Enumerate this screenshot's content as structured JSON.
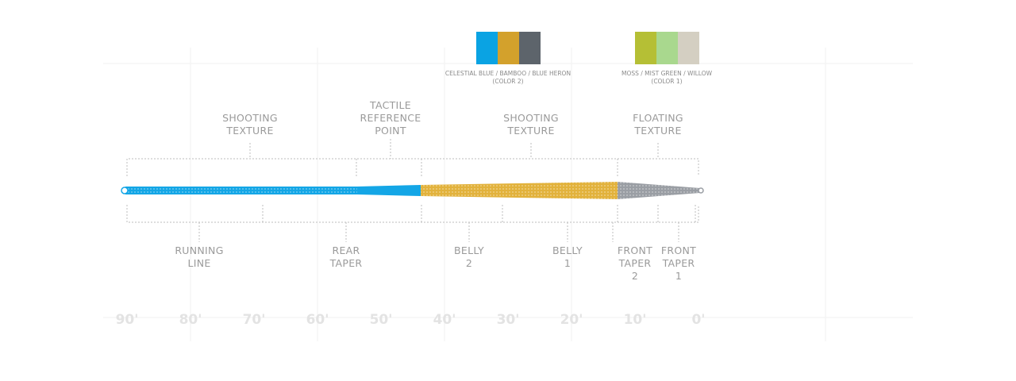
{
  "swatches": [
    {
      "label": "CELESTIAL BLUE / BAMBOO / BLUE HERON\n(COLOR 2)",
      "colors": [
        "#0aa3e3",
        "#d3a12c",
        "#5d646b"
      ]
    },
    {
      "label": "MOSS / MIST GREEN / WILLOW\n(COLOR 1)",
      "colors": [
        "#b5bf35",
        "#a9d88e",
        "#d4cfc2"
      ]
    }
  ],
  "top_labels": [
    "SHOOTING\nTEXTURE",
    "TACTILE\nREFERENCE\nPOINT",
    "SHOOTING\nTEXTURE",
    "FLOATING\nTEXTURE"
  ],
  "bottom_labels": [
    "RUNNING\nLINE",
    "REAR\nTAPER",
    "BELLY\n2",
    "BELLY\n1",
    "FRONT\nTAPER\n2",
    "FRONT\nTAPER\n1"
  ],
  "ticks": [
    "90'",
    "80'",
    "70'",
    "60'",
    "50'",
    "40'",
    "30'",
    "20'",
    "10'",
    "0'"
  ],
  "colors": {
    "running": "#14a6e6",
    "belly": "#e2b23c",
    "front": "#9a9ea4",
    "text": "#9a9a9a"
  }
}
